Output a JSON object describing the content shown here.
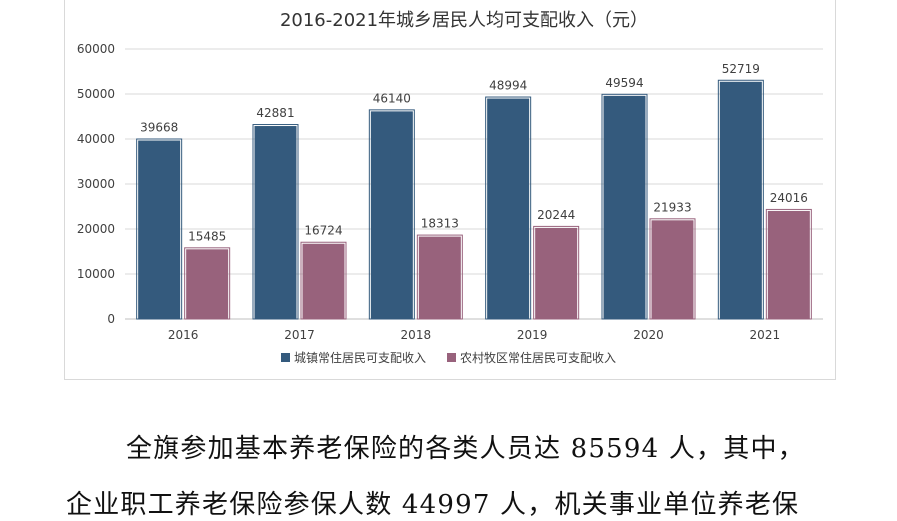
{
  "colors": {
    "urban": "#345a7d",
    "rural": "#98627c",
    "grid": "#d9d9d9",
    "text": "#404040"
  },
  "chart_data": {
    "type": "bar",
    "title": "2016-2021年城乡居民人均可支配收入（元）",
    "categories": [
      "2016",
      "2017",
      "2018",
      "2019",
      "2020",
      "2021"
    ],
    "series": [
      {
        "name": "城镇常住居民可支配收入",
        "values": [
          39668,
          42881,
          46140,
          48994,
          49594,
          52719
        ]
      },
      {
        "name": "农村牧区常住居民可支配收入",
        "values": [
          15485,
          16724,
          18313,
          20244,
          21933,
          24016
        ]
      }
    ],
    "yticks": [
      "0",
      "10000",
      "20000",
      "30000",
      "40000",
      "50000",
      "60000"
    ],
    "ylim": [
      0,
      60000
    ],
    "grid": true,
    "legend": "bottom"
  },
  "text": {
    "line1": "全旗参加基本养老保险的各类人员达 85594 人，其中，",
    "line2": "企业职工养老保险参保人数 44997 人，机关事业单位养老保"
  }
}
